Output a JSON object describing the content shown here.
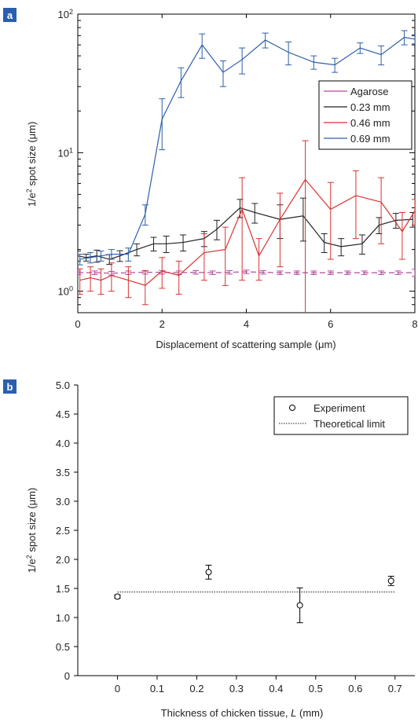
{
  "chart_data": [
    {
      "panel": "a",
      "type": "line",
      "xlabel": "Displacement of scattering sample (μm)",
      "ylabel_parts": [
        "1/e",
        "2",
        " spot size (μm)"
      ],
      "xlim": [
        0,
        8
      ],
      "ylim": [
        0.7,
        100
      ],
      "yscale": "log",
      "xticks": [
        0,
        2,
        4,
        6,
        8
      ],
      "yticks": [
        {
          "v": 1,
          "base": "10",
          "exp": "0"
        },
        {
          "v": 10,
          "base": "10",
          "exp": "1"
        },
        {
          "v": 100,
          "base": "10",
          "exp": "2"
        }
      ],
      "legend_position": "right",
      "series": [
        {
          "name": "Agarose",
          "color": "#b4489c",
          "dashed": true,
          "x": [
            0,
            0.4,
            0.8,
            1.2,
            1.6,
            2.0,
            2.4,
            2.8,
            3.2,
            3.6,
            4.0,
            4.4,
            4.8,
            5.2,
            5.6,
            6.0,
            6.4,
            6.8,
            7.2,
            7.6,
            8.0
          ],
          "y": [
            1.36,
            1.36,
            1.35,
            1.36,
            1.37,
            1.37,
            1.36,
            1.37,
            1.36,
            1.37,
            1.38,
            1.37,
            1.36,
            1.36,
            1.36,
            1.36,
            1.36,
            1.36,
            1.36,
            1.36,
            1.36
          ],
          "err": [
            0.04,
            0.04,
            0.04,
            0.04,
            0.04,
            0.04,
            0.04,
            0.04,
            0.04,
            0.04,
            0.04,
            0.04,
            0.04,
            0.04,
            0.04,
            0.04,
            0.04,
            0.04,
            0.04,
            0.04,
            0.08
          ]
        },
        {
          "name": "0.23 mm",
          "color": "#222222",
          "dashed": false,
          "x": [
            0,
            0.2,
            0.45,
            0.75,
            1.0,
            1.4,
            1.8,
            2.1,
            2.5,
            3.0,
            3.3,
            3.85,
            4.2,
            4.8,
            5.35,
            5.85,
            6.25,
            6.75,
            7.15,
            7.55,
            7.95
          ],
          "y": [
            1.8,
            1.75,
            1.8,
            1.7,
            1.8,
            2.0,
            2.2,
            2.2,
            2.25,
            2.4,
            2.8,
            4.0,
            3.7,
            3.3,
            3.5,
            2.25,
            2.1,
            2.2,
            3.0,
            3.25,
            3.3
          ],
          "err": [
            0.15,
            0.1,
            0.18,
            0.14,
            0.16,
            0.2,
            0.25,
            0.3,
            0.3,
            0.3,
            0.45,
            0.6,
            0.6,
            0.9,
            1.2,
            0.35,
            0.3,
            0.35,
            0.4,
            0.4,
            0.4
          ]
        },
        {
          "name": "0.46 mm",
          "color": "#d83232",
          "dashed": false,
          "x": [
            0.05,
            0.3,
            0.55,
            0.8,
            1.2,
            1.6,
            2.0,
            2.4,
            3.0,
            3.5,
            3.9,
            4.3,
            4.8,
            5.4,
            6.0,
            6.6,
            7.2,
            7.7,
            8.0
          ],
          "y": [
            1.2,
            1.25,
            1.2,
            1.3,
            1.2,
            1.1,
            1.4,
            1.3,
            1.9,
            2.0,
            3.9,
            1.8,
            3.3,
            6.4,
            3.9,
            4.9,
            4.4,
            2.7,
            3.8
          ],
          "err": [
            0.25,
            0.25,
            0.25,
            0.3,
            0.3,
            0.3,
            0.35,
            0.35,
            0.7,
            0.9,
            2.7,
            0.6,
            1.8,
            5.8,
            2.2,
            2.5,
            2.2,
            1.0,
            0.8
          ]
        },
        {
          "name": "0.69 mm",
          "color": "#2d5faa",
          "dashed": false,
          "x": [
            0.05,
            0.3,
            0.55,
            0.8,
            1.2,
            1.6,
            2.0,
            2.45,
            2.95,
            3.45,
            3.9,
            4.45,
            5.0,
            5.6,
            6.1,
            6.7,
            7.2,
            7.75,
            8.0
          ],
          "y": [
            1.7,
            1.75,
            1.8,
            1.85,
            1.85,
            3.6,
            17.5,
            33,
            60,
            38,
            47,
            65,
            53,
            45,
            43,
            57,
            51,
            68,
            66
          ],
          "err": [
            0.15,
            0.15,
            0.15,
            0.15,
            0.2,
            0.6,
            7,
            8,
            12,
            8,
            10,
            8,
            10,
            5,
            5,
            5,
            8,
            8,
            5
          ]
        }
      ]
    },
    {
      "panel": "b",
      "type": "scatter",
      "xlabel_main": "Thickness of chicken tissue, ",
      "xlabel_var": "L",
      "xlabel_unit": " (mm)",
      "ylabel": "1/e² spot size (μm)",
      "ylabel_parts": [
        "1/e",
        "2",
        " spot size (μm)"
      ],
      "xlim": [
        -0.1,
        0.75
      ],
      "ylim": [
        0,
        5
      ],
      "xticks": [
        "0",
        "0.1",
        "0.2",
        "0.3",
        "0.4",
        "0.5",
        "0.6",
        "0.7"
      ],
      "yticks": [
        "0",
        "0.5",
        "1.0",
        "1.5",
        "2.0",
        "2.5",
        "3.0",
        "3.5",
        "4.0",
        "4.5",
        "5.0"
      ],
      "legend_position": "top-right",
      "series": [
        {
          "name": "Experiment",
          "style": "circle-marker",
          "x": [
            0,
            0.23,
            0.46,
            0.69
          ],
          "y": [
            1.36,
            1.78,
            1.21,
            1.63
          ],
          "err": [
            0.03,
            0.12,
            0.3,
            0.08
          ]
        },
        {
          "name": "Theoretical limit",
          "style": "dotted-line",
          "x": [
            0,
            0.7
          ],
          "y": [
            1.44,
            1.44
          ]
        }
      ]
    }
  ],
  "labels": {
    "panel_a": "a",
    "panel_b": "b"
  },
  "colors": {
    "panel_label_bg": "#2a5fae",
    "panel_label_text": "#ffffff",
    "axis": "#000000"
  }
}
